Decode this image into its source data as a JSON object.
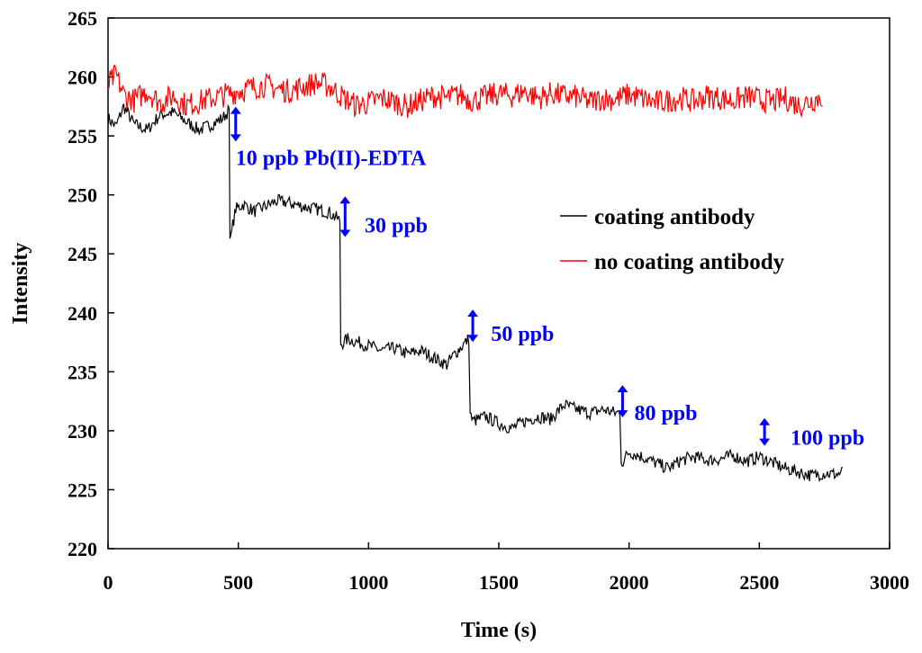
{
  "chart_data": {
    "type": "line",
    "xlabel": "Time (s)",
    "ylabel": "Intensity",
    "xlim": [
      0,
      3000
    ],
    "ylim": [
      220,
      265
    ],
    "x_ticks": [
      0,
      500,
      1000,
      1500,
      2000,
      2500,
      3000
    ],
    "y_ticks": [
      220,
      225,
      230,
      235,
      240,
      245,
      250,
      255,
      260,
      265
    ],
    "grid": false,
    "legend_position": "right",
    "series": [
      {
        "name": "coating antibody",
        "color": "#000000",
        "points": [
          [
            0,
            256.5
          ],
          [
            30,
            255.8
          ],
          [
            60,
            257.5
          ],
          [
            100,
            256.0
          ],
          [
            150,
            255.5
          ],
          [
            200,
            256.8
          ],
          [
            250,
            257.0
          ],
          [
            300,
            256.2
          ],
          [
            350,
            255.5
          ],
          [
            400,
            256.0
          ],
          [
            440,
            256.5
          ],
          [
            465,
            257.2
          ],
          [
            468,
            246.3
          ],
          [
            475,
            247.0
          ],
          [
            490,
            248.8
          ],
          [
            520,
            249.2
          ],
          [
            560,
            248.6
          ],
          [
            600,
            249.0
          ],
          [
            650,
            249.5
          ],
          [
            700,
            249.3
          ],
          [
            750,
            249.0
          ],
          [
            800,
            248.8
          ],
          [
            850,
            248.5
          ],
          [
            880,
            248.0
          ],
          [
            890,
            247.8
          ],
          [
            893,
            237.3
          ],
          [
            920,
            237.8
          ],
          [
            960,
            237.5
          ],
          [
            1000,
            237.2
          ],
          [
            1050,
            236.8
          ],
          [
            1100,
            237.0
          ],
          [
            1150,
            236.5
          ],
          [
            1200,
            236.8
          ],
          [
            1250,
            236.2
          ],
          [
            1300,
            235.6
          ],
          [
            1330,
            236.5
          ],
          [
            1360,
            237.2
          ],
          [
            1385,
            237.8
          ],
          [
            1390,
            231.5
          ],
          [
            1400,
            230.8
          ],
          [
            1450,
            231.2
          ],
          [
            1500,
            230.6
          ],
          [
            1550,
            230.2
          ],
          [
            1600,
            230.8
          ],
          [
            1650,
            231.2
          ],
          [
            1700,
            231.0
          ],
          [
            1750,
            232.2
          ],
          [
            1800,
            231.8
          ],
          [
            1850,
            231.5
          ],
          [
            1900,
            231.8
          ],
          [
            1950,
            231.5
          ],
          [
            1965,
            231.6
          ],
          [
            1970,
            227.2
          ],
          [
            2000,
            228.2
          ],
          [
            2050,
            227.8
          ],
          [
            2100,
            227.3
          ],
          [
            2150,
            226.8
          ],
          [
            2200,
            227.5
          ],
          [
            2250,
            227.8
          ],
          [
            2300,
            227.5
          ],
          [
            2350,
            227.6
          ],
          [
            2400,
            227.9
          ],
          [
            2450,
            227.4
          ],
          [
            2500,
            227.8
          ],
          [
            2550,
            227.3
          ],
          [
            2600,
            226.8
          ],
          [
            2650,
            226.5
          ],
          [
            2700,
            226.2
          ],
          [
            2750,
            226.4
          ],
          [
            2800,
            226.3
          ],
          [
            2820,
            226.5
          ]
        ]
      },
      {
        "name": "no coating antibody",
        "color": "#ff0000",
        "points": [
          [
            0,
            259.3
          ],
          [
            30,
            260.2
          ],
          [
            60,
            258.5
          ],
          [
            100,
            258.0
          ],
          [
            150,
            258.8
          ],
          [
            200,
            257.8
          ],
          [
            250,
            258.4
          ],
          [
            300,
            257.6
          ],
          [
            350,
            257.9
          ],
          [
            400,
            258.2
          ],
          [
            450,
            258.5
          ],
          [
            500,
            258.8
          ],
          [
            550,
            259.1
          ],
          [
            600,
            259.3
          ],
          [
            650,
            259.0
          ],
          [
            700,
            258.8
          ],
          [
            750,
            259.2
          ],
          [
            800,
            259.5
          ],
          [
            850,
            259.2
          ],
          [
            900,
            258.3
          ],
          [
            950,
            257.6
          ],
          [
            1000,
            257.8
          ],
          [
            1050,
            258.2
          ],
          [
            1100,
            257.9
          ],
          [
            1150,
            257.5
          ],
          [
            1200,
            258.0
          ],
          [
            1250,
            258.4
          ],
          [
            1300,
            258.2
          ],
          [
            1350,
            258.5
          ],
          [
            1400,
            258.0
          ],
          [
            1450,
            258.3
          ],
          [
            1500,
            258.6
          ],
          [
            1550,
            258.4
          ],
          [
            1600,
            258.8
          ],
          [
            1650,
            258.2
          ],
          [
            1700,
            258.6
          ],
          [
            1750,
            258.4
          ],
          [
            1800,
            258.3
          ],
          [
            1850,
            257.9
          ],
          [
            1900,
            258.2
          ],
          [
            1950,
            258.1
          ],
          [
            2000,
            258.5
          ],
          [
            2050,
            258.2
          ],
          [
            2100,
            257.8
          ],
          [
            2150,
            258.0
          ],
          [
            2200,
            258.2
          ],
          [
            2250,
            257.9
          ],
          [
            2300,
            258.4
          ],
          [
            2350,
            258.2
          ],
          [
            2400,
            258.0
          ],
          [
            2450,
            258.3
          ],
          [
            2500,
            258.1
          ],
          [
            2550,
            257.9
          ],
          [
            2600,
            258.2
          ],
          [
            2650,
            257.6
          ],
          [
            2700,
            258.0
          ],
          [
            2740,
            258.3
          ]
        ]
      }
    ],
    "annotations": [
      {
        "text": "10 ppb Pb(II)-EDTA",
        "x": 490,
        "y": 253.2,
        "arrow_x": 490,
        "arrow_y1": 257.4,
        "arrow_y2": 254.6
      },
      {
        "text": "30 ppb",
        "x": 985,
        "y": 247.5,
        "arrow_x": 910,
        "arrow_y1": 249.8,
        "arrow_y2": 246.5
      },
      {
        "text": "50 ppb",
        "x": 1470,
        "y": 238.3,
        "arrow_x": 1400,
        "arrow_y1": 240.2,
        "arrow_y2": 237.6
      },
      {
        "text": "80 ppb",
        "x": 2020,
        "y": 231.6,
        "arrow_x": 1975,
        "arrow_y1": 233.8,
        "arrow_y2": 231.2
      },
      {
        "text": "100 ppb",
        "x": 2620,
        "y": 229.5,
        "arrow_x": 2520,
        "arrow_y1": 231.0,
        "arrow_y2": 228.8
      }
    ],
    "annotation_color": "#0000ff"
  }
}
